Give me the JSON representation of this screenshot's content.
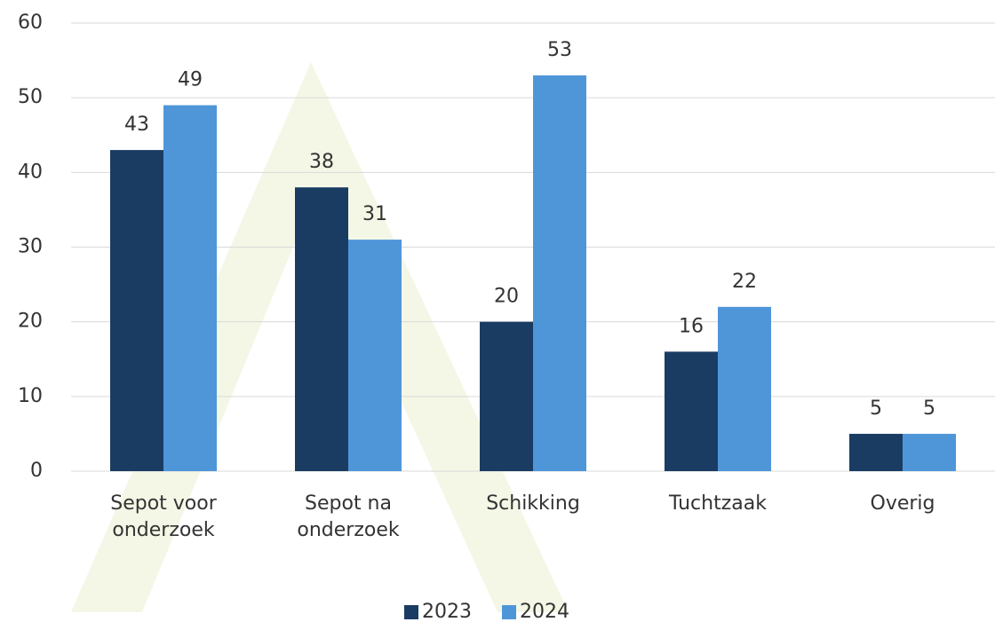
{
  "chart_data": {
    "type": "bar",
    "categories": [
      "Sepot voor onderzoek",
      "Sepot na onderzoek",
      "Schikking",
      "Tuchtzaak",
      "Overig"
    ],
    "series": [
      {
        "name": "2023",
        "color": "#1a3c63",
        "values": [
          43,
          38,
          20,
          16,
          5
        ]
      },
      {
        "name": "2024",
        "color": "#4f96d9",
        "values": [
          49,
          31,
          53,
          22,
          5
        ]
      }
    ],
    "ylim": [
      0,
      60
    ],
    "yticks": [
      0,
      10,
      20,
      30,
      40,
      50,
      60
    ],
    "grid": true,
    "legend": "bottom"
  }
}
